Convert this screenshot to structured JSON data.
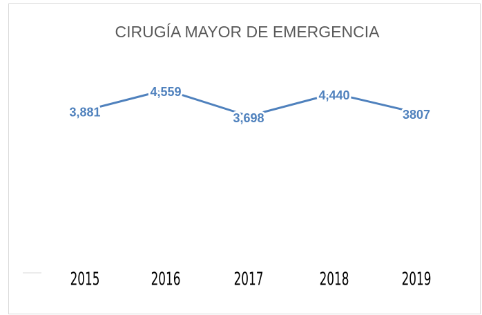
{
  "chart_data": {
    "type": "line",
    "title": "CIRUGÍA MAYOR DE EMERGENCIA",
    "categories": [
      "2015",
      "2016",
      "2017",
      "2018",
      "2019"
    ],
    "series": [
      {
        "color": "#4f81bd",
        "values": [
          3881,
          4559,
          3698,
          4440,
          3807
        ],
        "value_labels": [
          "3,881",
          "4,559",
          "3,698",
          "4,440",
          "3807"
        ]
      }
    ]
  }
}
